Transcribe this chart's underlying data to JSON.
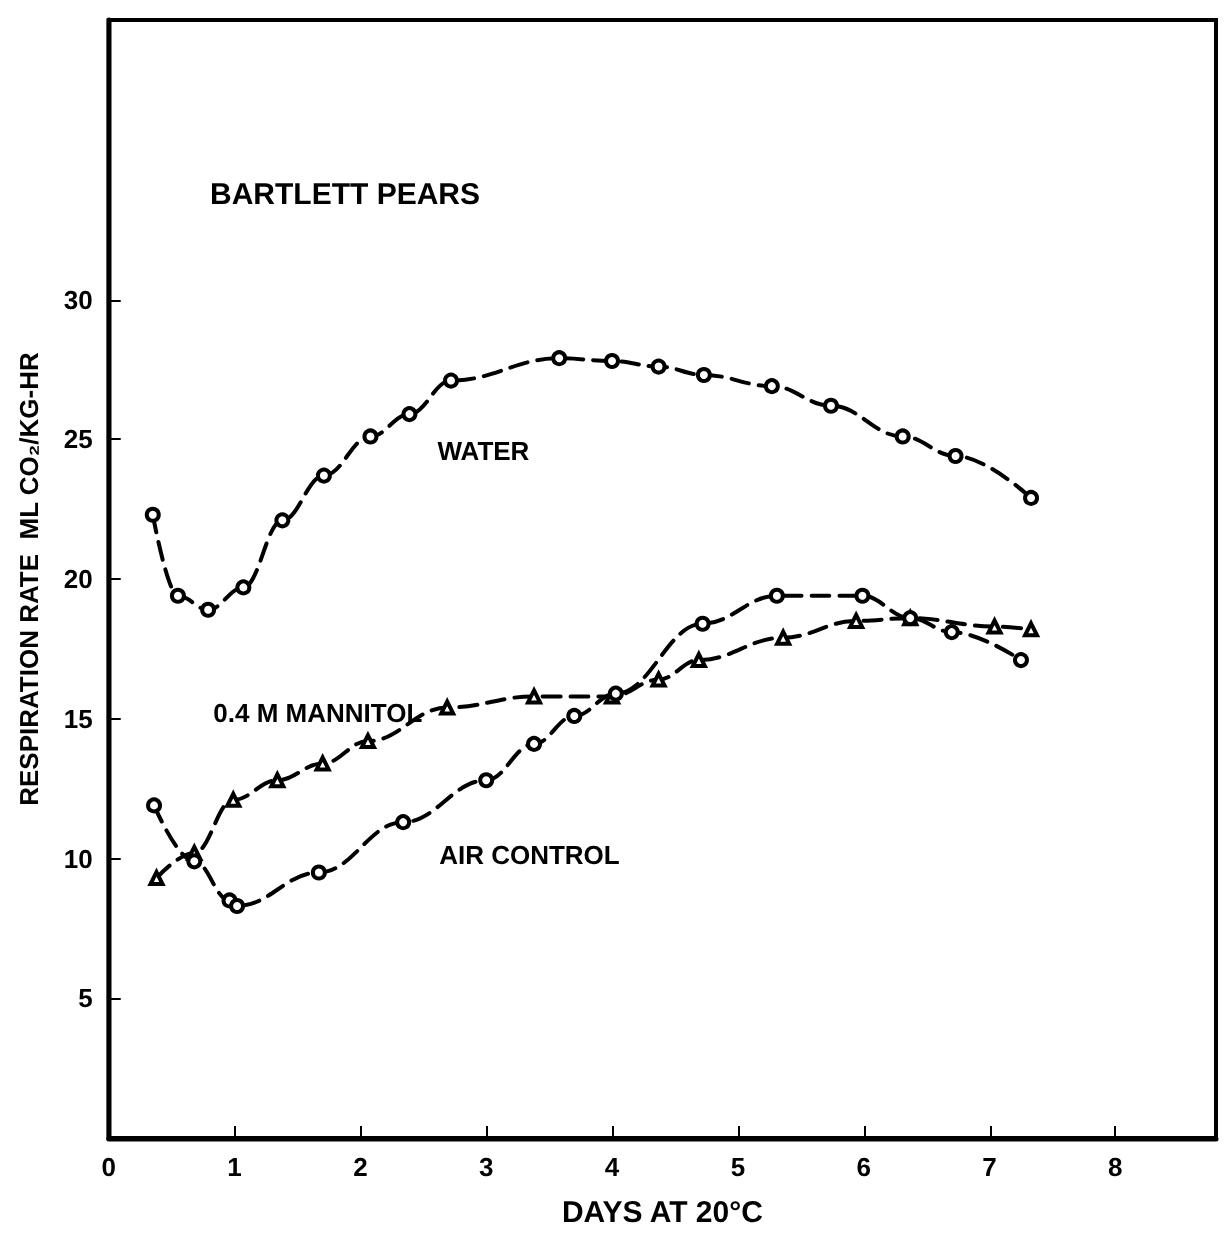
{
  "chart_data": {
    "type": "line",
    "title": "BARTLETT PEARS",
    "xlabel": "DAYS AT 20°C",
    "ylabel": "RESPIRATION RATE  ML CO₂/KG-HR",
    "xlim": [
      0,
      8.8
    ],
    "xticks": [
      0,
      1,
      2,
      3,
      4,
      5,
      6,
      7,
      8
    ],
    "ylim": [
      0,
      40
    ],
    "yticks": [
      5,
      10,
      15,
      20,
      25,
      30
    ],
    "grid": false,
    "legend": false,
    "line_style": "dashed",
    "series": [
      {
        "name": "WATER",
        "color": "#000000",
        "marker": "circle",
        "x": [
          0.35,
          0.55,
          0.79,
          1.07,
          1.38,
          1.71,
          2.08,
          2.39,
          2.72,
          3.58,
          4.0,
          4.37,
          4.73,
          5.27,
          5.74,
          6.31,
          6.73,
          7.33
        ],
        "values": [
          22.3,
          19.4,
          18.9,
          19.7,
          22.1,
          23.7,
          25.1,
          25.9,
          27.1,
          27.9,
          27.8,
          27.6,
          27.3,
          26.9,
          26.2,
          25.1,
          24.4,
          22.9
        ]
      },
      {
        "name": "0.4 M MANNITOL",
        "color": "#000000",
        "marker": "triangle",
        "x": [
          0.38,
          0.68,
          0.99,
          1.34,
          1.7,
          2.06,
          2.69,
          3.38,
          4.0,
          4.37,
          4.69,
          5.36,
          5.94,
          6.37,
          7.04,
          7.33
        ],
        "values": [
          9.3,
          10.2,
          12.1,
          12.8,
          13.4,
          14.2,
          15.4,
          15.8,
          15.8,
          16.4,
          17.1,
          17.9,
          18.5,
          18.6,
          18.3,
          18.2
        ]
      },
      {
        "name": "AIR CONTROL",
        "color": "#000000",
        "marker": "circle",
        "x": [
          0.36,
          0.68,
          0.96,
          1.02,
          1.67,
          2.34,
          3.0,
          3.38,
          3.7,
          4.03,
          4.72,
          5.31,
          5.99,
          6.37,
          6.7,
          7.25
        ],
        "values": [
          11.9,
          9.9,
          8.5,
          8.3,
          9.5,
          11.3,
          12.8,
          14.1,
          15.1,
          15.9,
          18.4,
          19.4,
          19.4,
          18.6,
          18.1,
          17.1
        ]
      }
    ]
  }
}
